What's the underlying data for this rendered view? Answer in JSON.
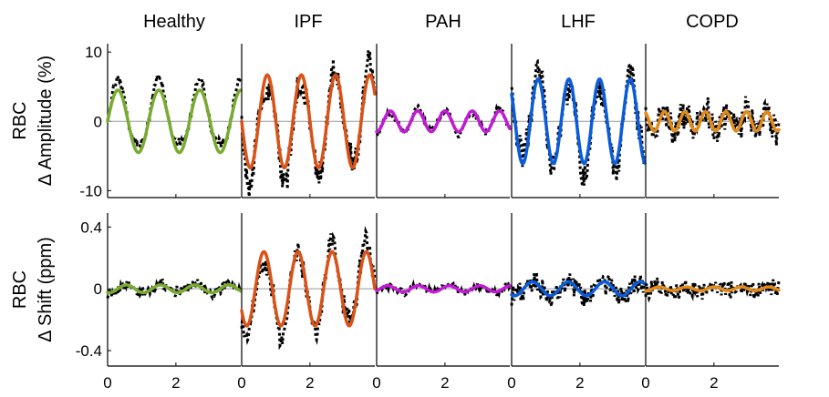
{
  "chart_data": {
    "type": "line",
    "columns": [
      "Healthy",
      "IPF",
      "PAH",
      "LHF",
      "COPD"
    ],
    "colors": {
      "Healthy": "#78ab30",
      "IPF": "#d95319",
      "PAH": "#c21ad6",
      "LHF": "#0a5cd8",
      "COPD": "#e38a1a",
      "measured": "#000000",
      "zero_line": "#999999"
    },
    "measured_line_style": "dotted",
    "fit_line_style": "solid",
    "xlim": [
      0,
      3.9
    ],
    "x_ticks": [
      0,
      2
    ],
    "x_tick_labels": [
      "0",
      "2"
    ],
    "rows": [
      {
        "ylabel_line1": "RBC",
        "ylabel_line2": "Δ Amplitude (%)",
        "ylim": [
          -11,
          11.2
        ],
        "y_ticks": [
          10,
          0,
          -10
        ],
        "y_tick_labels": [
          "10",
          "0",
          "-10"
        ],
        "series": [
          {
            "column": "Healthy",
            "fit": {
              "amplitude": 4.5,
              "period": 1.2,
              "phase": 0.0
            },
            "noise": 0.6
          },
          {
            "column": "IPF",
            "fit": {
              "amplitude": 6.7,
              "period": 1.0,
              "phase": 0.5
            },
            "noise": 1.8
          },
          {
            "column": "PAH",
            "fit": {
              "amplitude": 1.5,
              "period": 0.8,
              "phase": 0.2
            },
            "noise": 0.35
          },
          {
            "column": "LHF",
            "fit": {
              "amplitude": 6.1,
              "period": 0.9,
              "phase": 0.55
            },
            "noise": 2.0
          },
          {
            "column": "COPD",
            "fit": {
              "amplitude": 1.4,
              "period": 0.6,
              "phase": 0.4
            },
            "noise": 2.0
          }
        ]
      },
      {
        "ylabel_line1": "RBC",
        "ylabel_line2": "Δ Shift (ppm)",
        "ylim": [
          -0.5,
          0.49
        ],
        "y_ticks": [
          0.4,
          0,
          -0.4
        ],
        "y_tick_labels": [
          "0.4",
          "0",
          "-0.4"
        ],
        "series": [
          {
            "column": "Healthy",
            "fit": {
              "amplitude": 0.025,
              "period": 1.0,
              "phase": 0.3
            },
            "noise": 0.03
          },
          {
            "column": "IPF",
            "fit": {
              "amplitude": 0.24,
              "period": 1.0,
              "phase": 0.4
            },
            "noise": 0.07
          },
          {
            "column": "PAH",
            "fit": {
              "amplitude": 0.02,
              "period": 0.9,
              "phase": 0.1
            },
            "noise": 0.02
          },
          {
            "column": "LHF",
            "fit": {
              "amplitude": 0.045,
              "period": 1.05,
              "phase": 0.35
            },
            "noise": 0.06
          },
          {
            "column": "COPD",
            "fit": {
              "amplitude": 0.012,
              "period": 0.8,
              "phase": 0.2
            },
            "noise": 0.05
          }
        ]
      }
    ]
  }
}
